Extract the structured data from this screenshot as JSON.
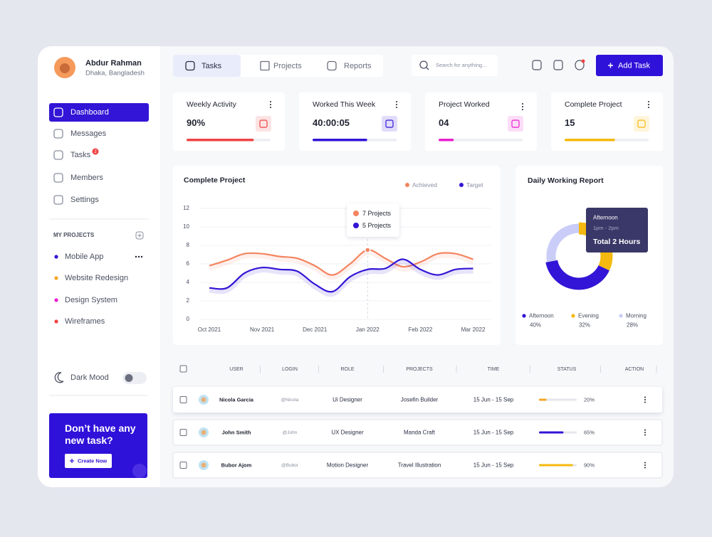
{
  "profile": {
    "name": "Abdur Rahman",
    "location": "Dhaka, Bangladesh"
  },
  "nav": {
    "items": [
      "Dashboard",
      "Messages",
      "Tasks",
      "Members",
      "Settings"
    ],
    "tasks_badge": "2"
  },
  "projects": {
    "title": "MY PROJECTS",
    "items": [
      {
        "name": "Mobile App",
        "color": "#3215d6"
      },
      {
        "name": "Website Redesign",
        "color": "#f5a623"
      },
      {
        "name": "Design System",
        "color": "#e91ecf"
      },
      {
        "name": "Wireframes",
        "color": "#ef4444"
      }
    ]
  },
  "dark_mode": "Dark Mood",
  "promo": {
    "title": "Don’t have any new task?",
    "button": "Create Now"
  },
  "tabs": [
    "Tasks",
    "Projects",
    "Reports"
  ],
  "search_placeholder": "Search for anything...",
  "add_task": "Add Task",
  "stats": [
    {
      "title": "Weekly Activity",
      "value": "90%",
      "progress": 80,
      "color": "#ef4444"
    },
    {
      "title": "Worked This Week",
      "value": "40:00:05",
      "progress": 65,
      "color": "#3215d6"
    },
    {
      "title": "Project Worked",
      "value": "04",
      "progress": 18,
      "color": "#e91ecf"
    },
    {
      "title": "Complete Project",
      "value": "15",
      "progress": 60,
      "color": "#f5b90f"
    }
  ],
  "chart_data": [
    {
      "type": "line",
      "title": "Complete Project",
      "categories": [
        "Oct 2021",
        null,
        null,
        "Nov 2021",
        null,
        null,
        "Dec 2021",
        null,
        null,
        "Jan 2022",
        null,
        null,
        "Feb 2022",
        null,
        null,
        "Mar 2022"
      ],
      "series": [
        {
          "name": "Achieved",
          "color": "#f4845f",
          "values": [
            5.8,
            6.4,
            7.1,
            7.1,
            6.8,
            6.6,
            5.8,
            4.8,
            6.0,
            7.5,
            6.6,
            5.7,
            6.2,
            7.1,
            7.1,
            6.5
          ]
        },
        {
          "name": "Target",
          "color": "#3215d6",
          "values": [
            3.4,
            3.4,
            5.0,
            5.6,
            5.4,
            5.2,
            3.8,
            3.0,
            4.6,
            5.4,
            5.5,
            6.5,
            5.4,
            4.8,
            5.4,
            5.5
          ]
        }
      ],
      "ylim": [
        0,
        12
      ],
      "yticks": [
        0,
        2,
        4,
        6,
        8,
        10,
        12
      ],
      "grid": true,
      "tooltip": [
        "7 Projects",
        "5 Projects"
      ]
    },
    {
      "type": "pie",
      "title": "Daily Working Report",
      "categories": [
        "Afternoon",
        "Evening",
        "Morning"
      ],
      "values": [
        40,
        32,
        28
      ],
      "value_labels": [
        "40%",
        "32%",
        "28%"
      ],
      "colors": [
        "#3215d6",
        "#f5b90f",
        "#c9cdf7"
      ],
      "tooltip": {
        "title": "Afternoon",
        "time": "1pm - 2pm",
        "total": "Total 2 Hours"
      }
    }
  ],
  "table": {
    "headers": [
      "USER",
      "LOGIN",
      "ROLE",
      "PROJECTS",
      "TIME",
      "STATUS",
      "ACTION"
    ],
    "rows": [
      {
        "user": "Nicola Garcia",
        "login": "@Nicola",
        "role": "Ui Designer",
        "project": "Josefin Builder",
        "time": "15 Jun - 15 Sep",
        "status": 20,
        "status_label": "20%",
        "color": "#f5a623"
      },
      {
        "user": "John Smith",
        "login": "@John",
        "role": "UX Designer",
        "project": "Manda Craft",
        "time": "15 Jun - 15 Sep",
        "status": 65,
        "status_label": "65%",
        "color": "#3215d6"
      },
      {
        "user": "Bubor Ajom",
        "login": "@Bubor",
        "role": "Motion Designer",
        "project": "Travel Illustration",
        "time": "15 Jun - 15 Sep",
        "status": 90,
        "status_label": "90%",
        "color": "#f5b90f"
      }
    ]
  }
}
